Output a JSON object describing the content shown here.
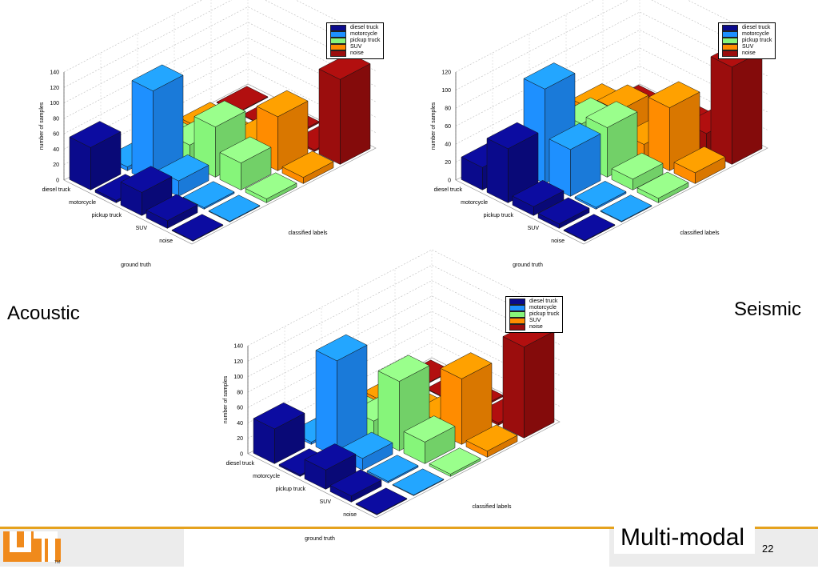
{
  "captions": {
    "acoustic": "Acoustic",
    "seismic": "Seismic",
    "multimodal": "Multi-modal"
  },
  "page_number": "22",
  "logo": {
    "text": "UT",
    "tm": "TM"
  },
  "colors": {
    "diesel truck": "#0a0a8c",
    "motorcycle": "#1e90ff",
    "pickup truck": "#86f57a",
    "SUV": "#ff8c00",
    "noise": "#9b0d0d"
  },
  "chart_data": [
    {
      "id": "acoustic",
      "type": "bar3d",
      "ylabel": "number of samples",
      "xlabel": "ground truth",
      "zlabel": "classified labels",
      "zlim": [
        0,
        140
      ],
      "ticks": [
        0,
        20,
        40,
        60,
        80,
        100,
        120,
        140
      ],
      "ground_truth": [
        "diesel truck",
        "motorcycle",
        "pickup truck",
        "SUV",
        "noise"
      ],
      "classified": [
        "diesel truck",
        "motorcycle",
        "pickup truck",
        "SUV",
        "noise"
      ],
      "legend": [
        "diesel truck",
        "motorcycle",
        "pickup truck",
        "SUV",
        "noise"
      ],
      "values": [
        [
          55,
          5,
          10,
          5,
          0
        ],
        [
          3,
          120,
          25,
          3,
          0
        ],
        [
          30,
          20,
          65,
          20,
          2
        ],
        [
          10,
          2,
          35,
          70,
          2
        ],
        [
          0,
          0,
          5,
          8,
          110
        ]
      ]
    },
    {
      "id": "seismic",
      "type": "bar3d",
      "ylabel": "number of samples",
      "xlabel": "ground truth",
      "zlabel": "classified labels",
      "zlim": [
        0,
        120
      ],
      "ticks": [
        0,
        20,
        40,
        60,
        80,
        100,
        120
      ],
      "ground_truth": [
        "diesel truck",
        "motorcycle",
        "pickup truck",
        "SUV",
        "noise"
      ],
      "classified": [
        "diesel truck",
        "motorcycle",
        "pickup truck",
        "SUV",
        "noise"
      ],
      "legend": [
        "diesel truck",
        "motorcycle",
        "pickup truck",
        "SUV",
        "noise"
      ],
      "values": [
        [
          25,
          22,
          28,
          25,
          2
        ],
        [
          60,
          105,
          45,
          38,
          3
        ],
        [
          10,
          52,
          55,
          15,
          12
        ],
        [
          5,
          2,
          12,
          70,
          20
        ],
        [
          0,
          0,
          5,
          12,
          108
        ]
      ]
    },
    {
      "id": "multimodal",
      "type": "bar3d",
      "ylabel": "number of samples",
      "xlabel": "ground truth",
      "zlabel": "classified labels",
      "zlim": [
        0,
        140
      ],
      "ticks": [
        0,
        20,
        40,
        60,
        80,
        100,
        120,
        140
      ],
      "ground_truth": [
        "diesel truck",
        "motorcycle",
        "pickup truck",
        "SUV",
        "noise"
      ],
      "classified": [
        "diesel truck",
        "motorcycle",
        "pickup truck",
        "SUV",
        "noise"
      ],
      "legend": [
        "diesel truck",
        "motorcycle",
        "pickup truck",
        "SUV",
        "noise"
      ],
      "values": [
        [
          45,
          3,
          10,
          5,
          0
        ],
        [
          2,
          125,
          22,
          5,
          0
        ],
        [
          25,
          15,
          90,
          15,
          2
        ],
        [
          8,
          2,
          28,
          85,
          3
        ],
        [
          0,
          0,
          3,
          8,
          118
        ]
      ]
    }
  ]
}
